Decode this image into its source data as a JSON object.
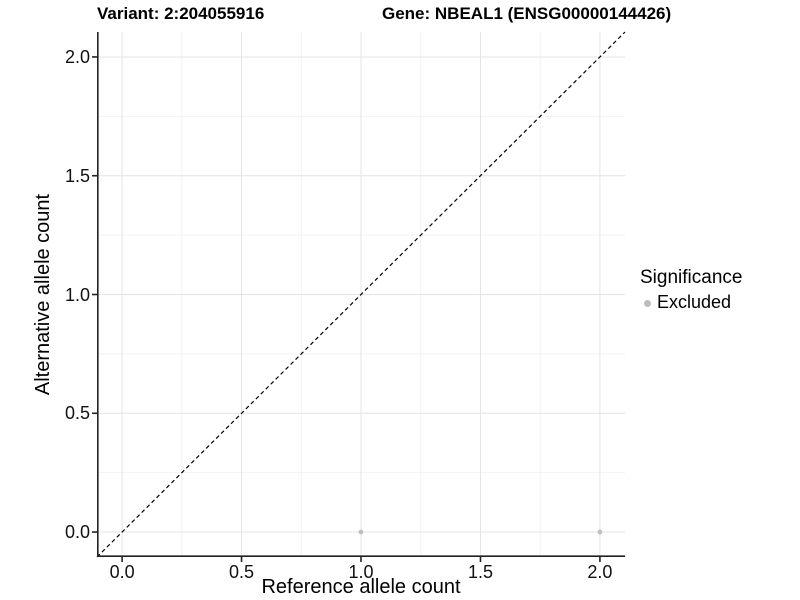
{
  "chart_data": {
    "type": "scatter",
    "titles": [
      "Variant: 2:204055916",
      "Gene: NBEAL1 (ENSG00000144426)"
    ],
    "xlabel": "Reference allele count",
    "ylabel": "Alternative allele count",
    "xlim": [
      -0.105,
      2.105
    ],
    "ylim": [
      -0.105,
      2.105
    ],
    "x_ticks": {
      "values": [
        0,
        0.5,
        1,
        1.5,
        2
      ],
      "labels": [
        "0.0",
        "0.5",
        "1.0",
        "1.5",
        "2.0"
      ],
      "minor": [
        0.25,
        0.75,
        1.25,
        1.75
      ]
    },
    "y_ticks": {
      "values": [
        0,
        0.5,
        1,
        1.5,
        2
      ],
      "labels": [
        "0.0",
        "0.5",
        "1.0",
        "1.5",
        "2.0"
      ],
      "minor": [
        0.25,
        0.75,
        1.25,
        1.75
      ]
    },
    "points": [
      {
        "x": 1.0,
        "y": 0.0,
        "series": "Excluded"
      },
      {
        "x": 2.0,
        "y": 0.0,
        "series": "Excluded"
      }
    ],
    "identity_line": {
      "style": "dashed",
      "color": "#000000",
      "from": -0.105,
      "to": 2.105
    },
    "grid": {
      "on": true,
      "major_color": "#e4e4e4",
      "minor_color": "#f2f2f2"
    },
    "axis_line_color": "#222222",
    "point_color": "#bfbfbf",
    "point_radius": 2.4,
    "legend": {
      "title": "Significance",
      "position": "right",
      "items": [
        {
          "label": "Excluded",
          "color": "#bdbdbd",
          "marker": "circle"
        }
      ]
    }
  }
}
